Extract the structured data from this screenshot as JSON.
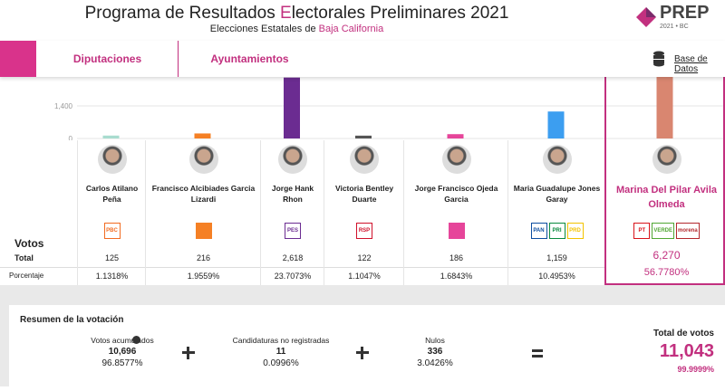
{
  "header": {
    "title": {
      "before": "Programa de Resultados ",
      "highlight": "E",
      "after": "lectorales Preliminares 2021"
    },
    "subtitle": {
      "before": "Elecciones Estatales de ",
      "highlight": "Baja California"
    },
    "logo": {
      "name": "PREP",
      "sub": "2021 • BC"
    }
  },
  "tabs": [
    "Diputaciones",
    "Ayuntamientos"
  ],
  "database": "Base de Datos",
  "chart": {
    "yticks": [
      0,
      {
        "value": 1400,
        "label": "1,400"
      }
    ]
  },
  "row_labels": {
    "votes": "Votos",
    "total": "Total",
    "percent": "Porcentaje"
  },
  "candidates": [
    {
      "name": "Carlos Atilano Peña",
      "votes": 125,
      "votes_label": "125",
      "percent": "1.1318%",
      "color": "#a9dccf",
      "parties": [
        {
          "label": "PBC",
          "color": "#f26b21"
        }
      ]
    },
    {
      "name": "Francisco Alcibiades Garcia Lizardi",
      "votes": 216,
      "votes_label": "216",
      "percent": "1.9559%",
      "color": "#f58025",
      "parties": [
        {
          "color": "#f58025"
        }
      ]
    },
    {
      "name": "Jorge Hank Rhon",
      "votes": 2618,
      "votes_label": "2,618",
      "percent": "23.7073%",
      "color": "#6b2c91",
      "parties": [
        {
          "label": "PES",
          "color": "#6b2c91"
        }
      ]
    },
    {
      "name": "Victoria Bentley Duarte",
      "votes": 122,
      "votes_label": "122",
      "percent": "1.1047%",
      "color": "#555555",
      "parties": [
        {
          "label": "RSP",
          "color": "#d0112b"
        }
      ]
    },
    {
      "name": "Jorge Francisco Ojeda Garcia",
      "votes": 186,
      "votes_label": "186",
      "percent": "1.6843%",
      "color": "#e6459a",
      "parties": [
        {
          "color": "#e6459a"
        }
      ]
    },
    {
      "name": "Maria Guadalupe Jones Garay",
      "votes": 1159,
      "votes_label": "1,159",
      "percent": "10.4953%",
      "color": "#3c9ef0",
      "parties": [
        {
          "label": "PAN",
          "color": "#0d4ea1"
        },
        {
          "label": "PRI",
          "color": "#0a8a3f"
        },
        {
          "label": "PRD",
          "color": "#f3c300"
        }
      ]
    },
    {
      "name": "Marina Del Pilar Avila Olmeda",
      "votes": 6270,
      "votes_label": "6,270",
      "percent": "56.7780%",
      "color": "#d98670",
      "parties": [
        {
          "label": "PT",
          "color": "#d9141b"
        },
        {
          "label": "VERDE",
          "color": "#51a734"
        },
        {
          "label": "morena",
          "color": "#b3282d"
        }
      ]
    }
  ],
  "summary": {
    "title": "Resumen de la votación",
    "items": [
      {
        "label": "Votos acumulados",
        "value": "10,696",
        "percent": "96.8577%"
      },
      {
        "label": "Candidaturas no registradas",
        "value": "11",
        "percent": "0.0996%"
      },
      {
        "label": "Nulos",
        "value": "336",
        "percent": "3.0426%"
      }
    ],
    "total": {
      "label": "Total de votos",
      "value": "11,043",
      "percent": "99.9999%"
    }
  }
}
